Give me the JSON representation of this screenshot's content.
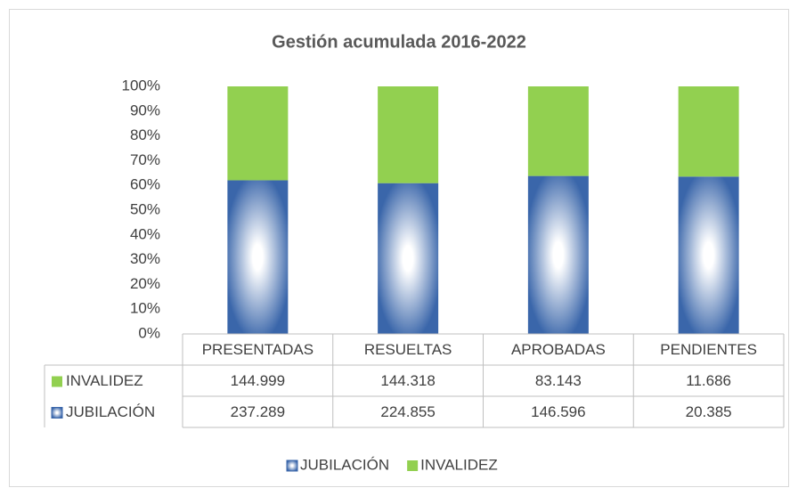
{
  "chart_data": {
    "type": "stacked_bar_percent",
    "title": "Gestión acumulada 2016-2022",
    "categories": [
      "PRESENTADAS",
      "RESUELTAS",
      "APROBADAS",
      "PENDIENTES"
    ],
    "series": [
      {
        "name": "JUBILACIÓN",
        "color": "#3a66aa",
        "values": [
          237289,
          224855,
          146596,
          20385
        ],
        "value_labels": [
          "237.289",
          "224.855",
          "146.596",
          "20.385"
        ]
      },
      {
        "name": "INVALIDEZ",
        "color": "#92d050",
        "values": [
          144999,
          144318,
          83143,
          11686
        ],
        "value_labels": [
          "144.999",
          "144.318",
          "83.143",
          "11.686"
        ]
      }
    ],
    "ylim": [
      0,
      100
    ],
    "yticks": [
      {
        "value": 0,
        "label": "0%"
      },
      {
        "value": 10,
        "label": "10%"
      },
      {
        "value": 20,
        "label": "20%"
      },
      {
        "value": 30,
        "label": "30%"
      },
      {
        "value": 40,
        "label": "40%"
      },
      {
        "value": 50,
        "label": "50%"
      },
      {
        "value": 60,
        "label": "60%"
      },
      {
        "value": 70,
        "label": "70%"
      },
      {
        "value": 80,
        "label": "80%"
      },
      {
        "value": 90,
        "label": "90%"
      },
      {
        "value": 100,
        "label": "100%"
      }
    ],
    "grid": false,
    "legend": "bottom"
  }
}
